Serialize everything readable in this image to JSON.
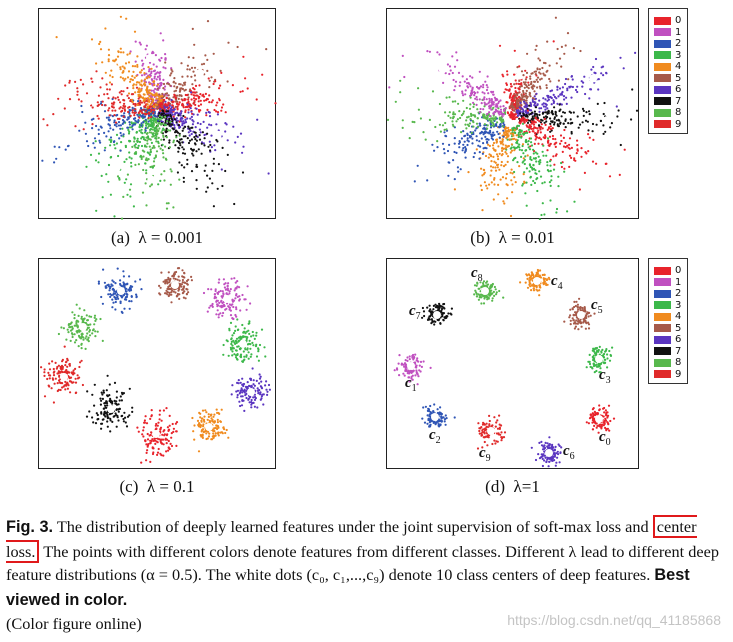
{
  "subfigures": [
    {
      "label": "(a)",
      "param": "λ = 0.001"
    },
    {
      "label": "(b)",
      "param": "λ = 0.01"
    },
    {
      "label": "(c)",
      "param": "λ = 0.1"
    },
    {
      "label": "(d)",
      "param": "λ=1"
    }
  ],
  "legend_top": {
    "items": [
      "0",
      "1",
      "2",
      "3",
      "4",
      "5",
      "6",
      "7",
      "8",
      "9"
    ]
  },
  "legend_bottom": {
    "items": [
      "0",
      "1",
      "2",
      "3",
      "4",
      "5",
      "6",
      "7",
      "8",
      "9"
    ]
  },
  "class_colors": {
    "0": "#e8232b",
    "1": "#c050c0",
    "2": "#2f55b5",
    "3": "#3cb84a",
    "4": "#f08b1f",
    "5": "#a65a4a",
    "6": "#5a35c0",
    "7": "#111111",
    "8": "#58b84d",
    "9": "#e02a2a"
  },
  "center_labels": [
    "c0",
    "c1",
    "c2",
    "c3",
    "c4",
    "c5",
    "c6",
    "c7",
    "c8",
    "c9"
  ],
  "caption": {
    "fig_label": "Fig. 3.",
    "text_1": " The distribution of deeply learned features under the joint supervision of soft-max loss and ",
    "highlight": "center loss.",
    "text_2": " The points with different colors denote features from different classes. Different λ lead to different deep feature distributions (α = 0.5). The white dots (c₀, c₁,...,c₉) denote 10 class centers of deep features. ",
    "bold_tail": "Best viewed in color.",
    "line_last": "(Color figure online)"
  },
  "watermark": "https://blog.csdn.net/qq_41185868"
}
